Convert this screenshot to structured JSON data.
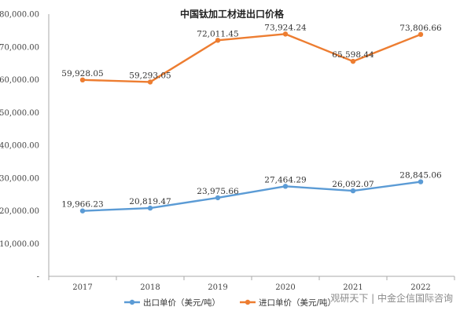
{
  "chart_data": {
    "type": "line",
    "title": "中国钛加工材进出口价格",
    "categories": [
      "2017",
      "2018",
      "2019",
      "2020",
      "2021",
      "2022"
    ],
    "series": [
      {
        "name": "出口单价（美元/吨）",
        "color": "#5b9bd5",
        "values": [
          19966.23,
          20819.47,
          23975.66,
          27464.29,
          26092.07,
          28845.06
        ],
        "labels": [
          "19,966.23",
          "20,819.47",
          "23,975.66",
          "27,464.29",
          "26,092.07",
          "28,845.06"
        ]
      },
      {
        "name": "进口单价（美元/吨）",
        "color": "#ed7d31",
        "values": [
          59928.05,
          59293.05,
          72011.45,
          73924.24,
          65598.44,
          73806.66
        ],
        "labels": [
          "59,928.05",
          "59,293.05",
          "72,011.45",
          "73,924.24",
          "65,598.44",
          "73,806.66"
        ]
      }
    ],
    "y_ticks": [
      "-",
      "10,000.00",
      "20,000.00",
      "30,000.00",
      "40,000.00",
      "50,000.00",
      "60,000.00",
      "70,000.00",
      "80,000.00"
    ],
    "ylim": [
      0,
      80000
    ],
    "grid": false,
    "legend_position": "bottom"
  },
  "watermark": "观研天下 | 中金企信国际咨询"
}
